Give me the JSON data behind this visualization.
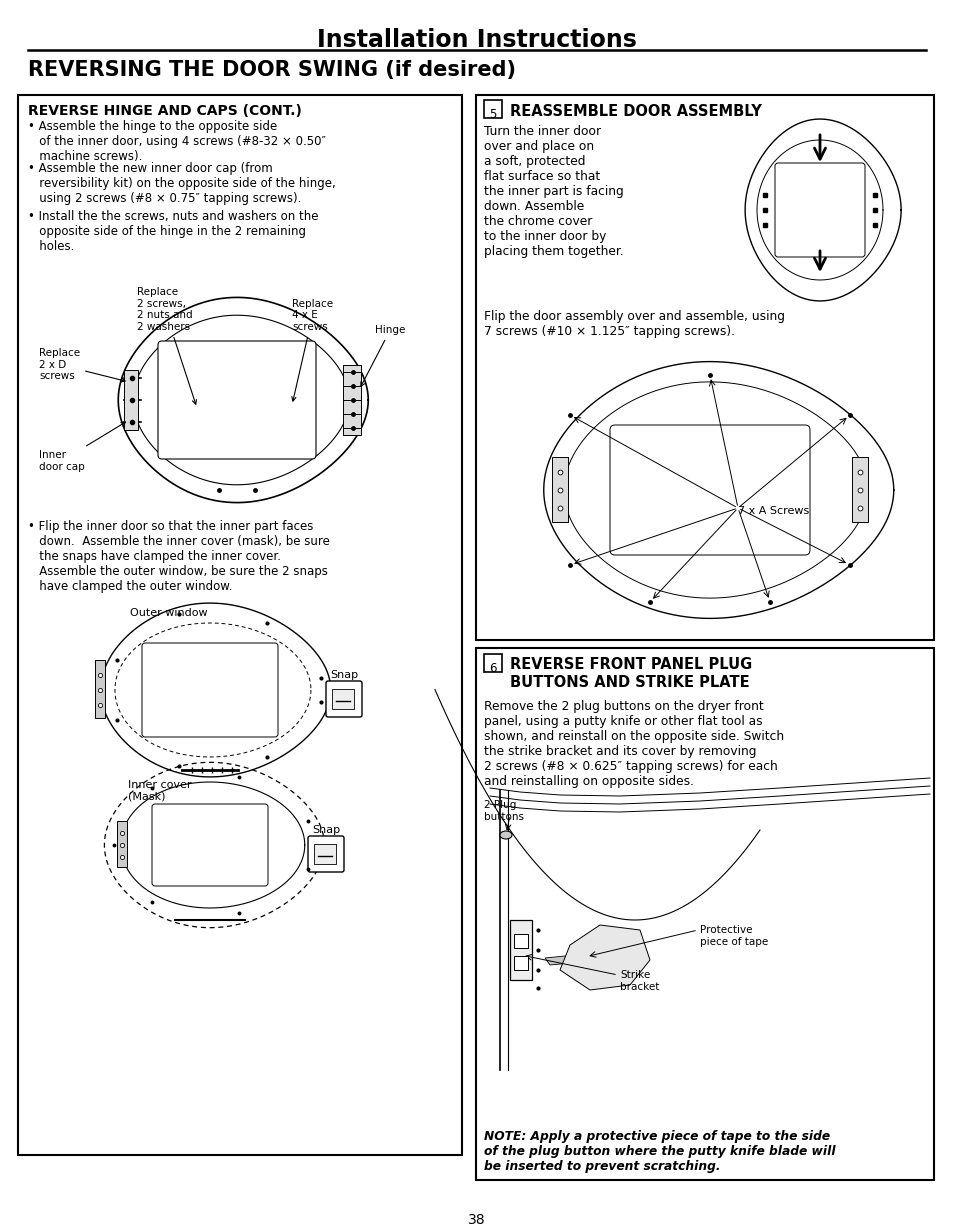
{
  "title": "Installation Instructions",
  "section_title": "REVERSING THE DOOR SWING (if desired)",
  "page_number": "38",
  "left_box_title": "REVERSE HINGE AND CAPS (CONT.)",
  "left_bullet1": "Assemble the hinge to the opposite side\n   of the inner door, using 4 screws (#8-32 × 0.50″\n   machine screws).",
  "left_bullet2": "Assemble the new inner door cap (from\n   reversibility kit) on the opposite side of the hinge,\n   using 2 screws (#8 × 0.75″ tapping screws).",
  "left_bullet3": "Install the the screws, nuts and washers on the\n   opposite side of the hinge in the 2 remaining\n   holes.",
  "left_bullet4": "Flip the inner door so that the inner part faces\n   down.  Assemble the inner cover (mask), be sure\n   the snaps have clamped the inner cover.\n   Assemble the outer window, be sure the 2 snaps\n   have clamped the outer window.",
  "right_top_num": "5",
  "right_top_title": "REASSEMBLE DOOR ASSEMBLY",
  "right_top_para1": "Turn the inner door\nover and place on\na soft, protected\nflat surface so that\nthe inner part is facing\ndown. Assemble\nthe chrome cover\nto the inner door by\nplacing them together.",
  "right_top_para2": "Flip the door assembly over and assemble, using\n7 screws (#10 × 1.125″ tapping screws).",
  "right_bot_num": "6",
  "right_bot_title1": "REVERSE FRONT PANEL PLUG",
  "right_bot_title2": "BUTTONS AND STRIKE PLATE",
  "right_bot_para": "Remove the 2 plug buttons on the dryer front\npanel, using a putty knife or other flat tool as\nshown, and reinstall on the opposite side. Switch\nthe strike bracket and its cover by removing\n2 screws (#8 × 0.625″ tapping screws) for each\nand reinstalling on opposite sides.",
  "right_bot_note": "NOTE: Apply a protective piece of tape to the side\nof the plug button where the putty knife blade will\nbe inserted to prevent scratching.",
  "lbl_replace2xD": "Replace\n2 x D\nscrews",
  "lbl_inner_door_cap": "Inner\ndoor cap",
  "lbl_replace2s": "Replace\n2 screws,\n2 nuts and\n2 washers",
  "lbl_replace4xE": "Replace\n4 x E\nscrews",
  "lbl_hinge": "Hinge",
  "lbl_7xA": "7 x A Screws",
  "lbl_outer_window": "Outer window",
  "lbl_snap": "Snap",
  "lbl_inner_cover": "Inner cover\n(Mask)",
  "lbl_plug_buttons": "2 Plug\nbuttons",
  "lbl_protective_tape": "Protective\npiece of tape",
  "lbl_strike_bracket": "Strike\nbracket"
}
